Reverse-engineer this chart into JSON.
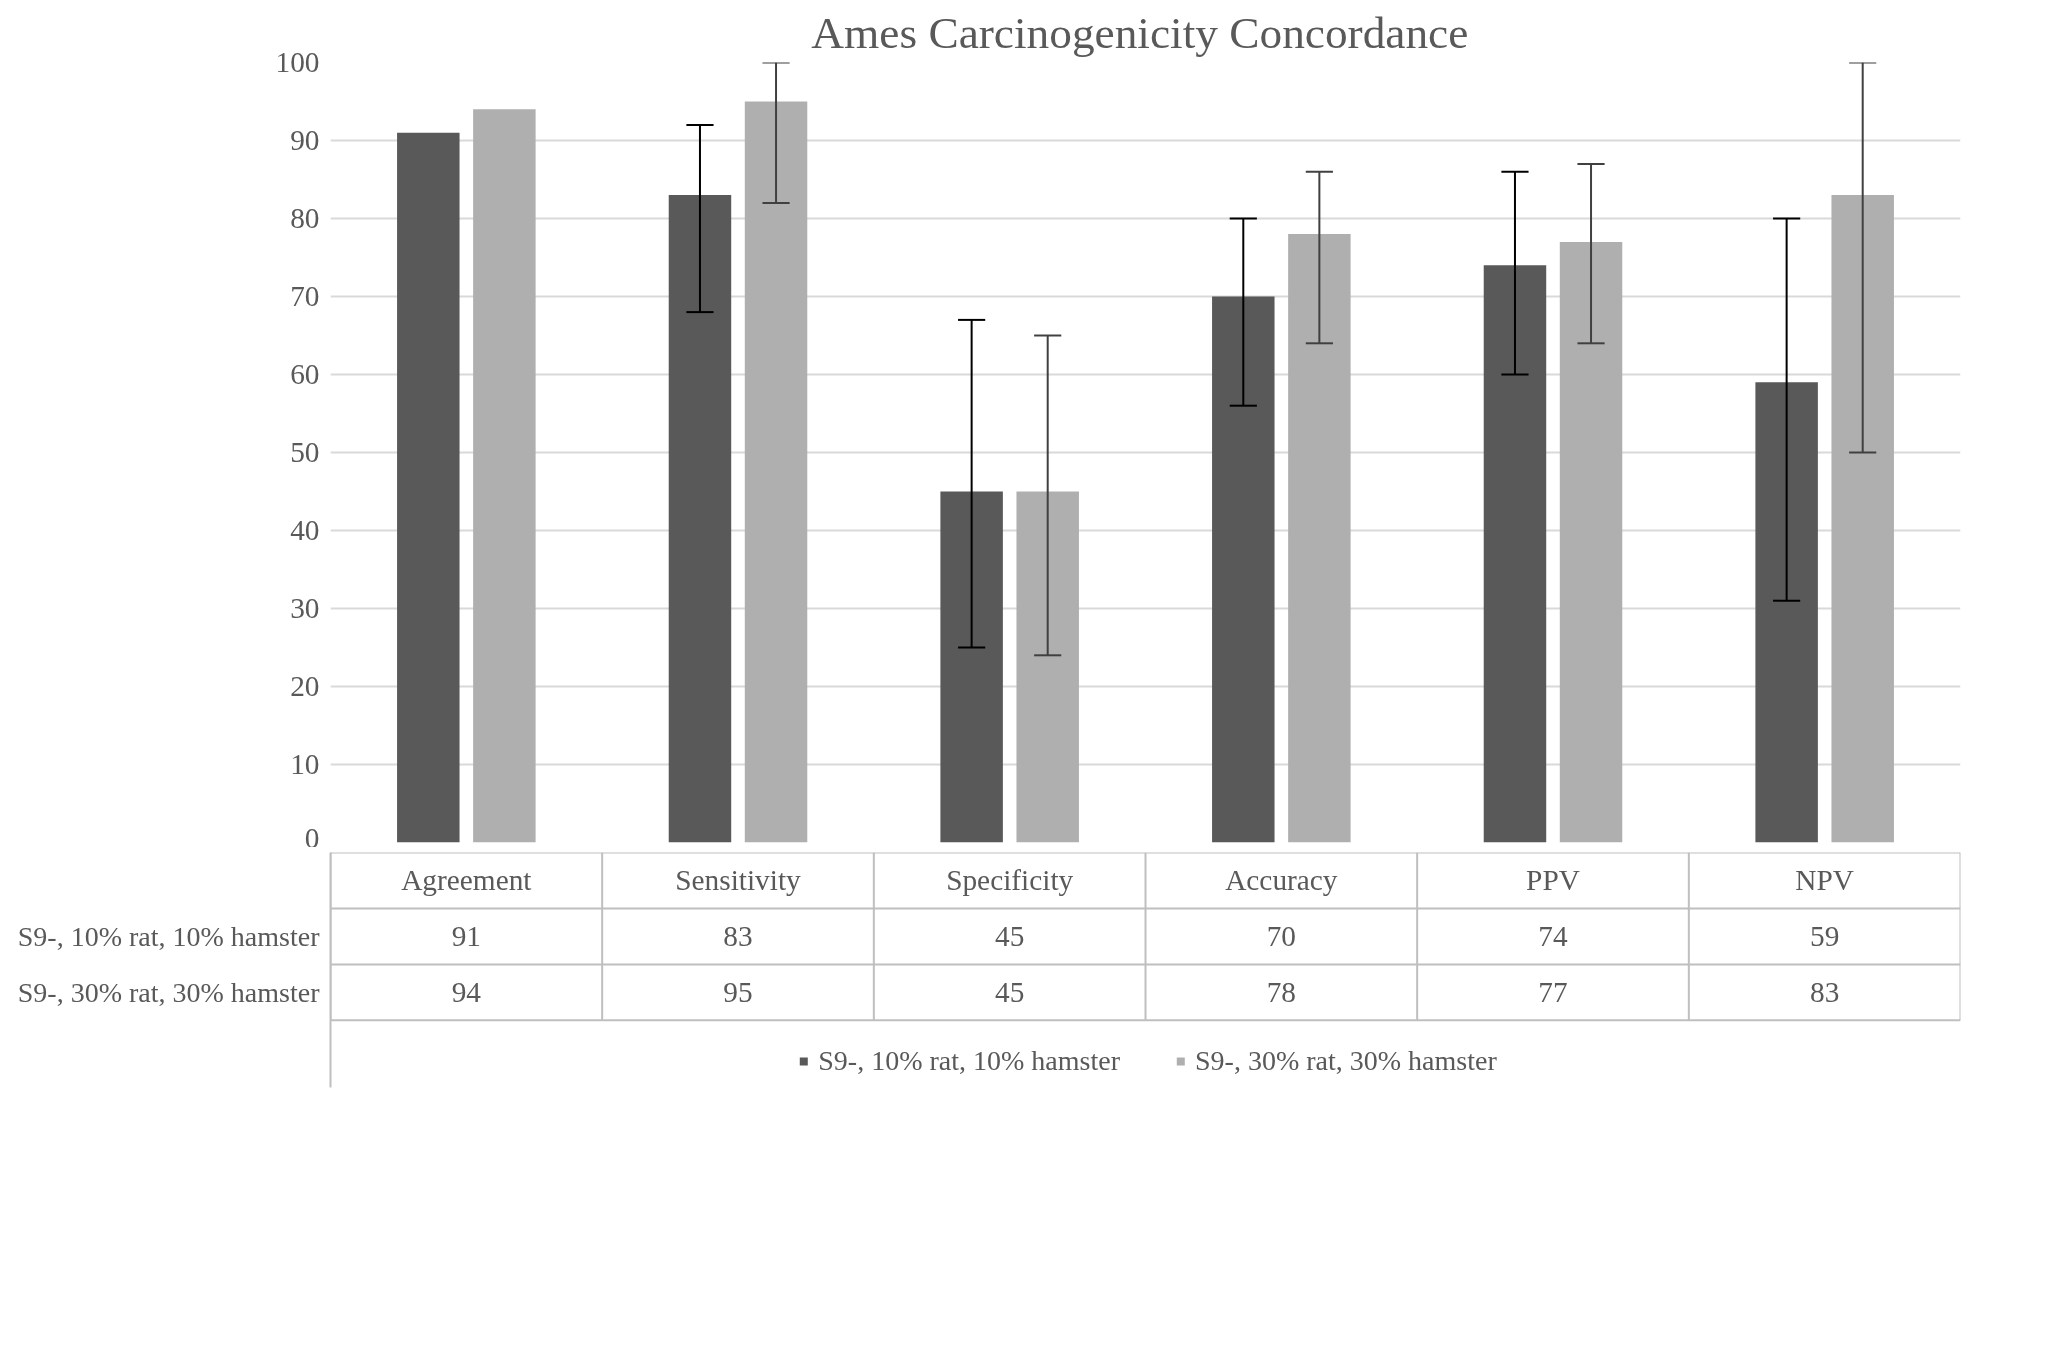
{
  "chart_data": {
    "type": "bar",
    "title": "Ames Carcinogenicity  Concordance",
    "categories": [
      "Agreement",
      "Sensitivity",
      "Specificity",
      "Accuracy",
      "PPV",
      "NPV"
    ],
    "series": [
      {
        "name": "S9-, 10% rat, 10% hamster",
        "color": "#595959",
        "values": [
          91,
          83,
          45,
          70,
          74,
          59
        ],
        "errors": [
          null,
          [
            68,
            92
          ],
          [
            25,
            67
          ],
          [
            56,
            80
          ],
          [
            60,
            86
          ],
          [
            31,
            80
          ]
        ]
      },
      {
        "name": "S9-, 30% rat, 30% hamster",
        "color": "#afafaf",
        "values": [
          94,
          95,
          45,
          78,
          77,
          83
        ],
        "errors": [
          null,
          [
            82,
            100
          ],
          [
            24,
            65
          ],
          [
            64,
            86
          ],
          [
            64,
            87
          ],
          [
            50,
            100
          ]
        ]
      }
    ],
    "ylim": [
      0,
      100
    ],
    "yticks": [
      0,
      10,
      20,
      30,
      40,
      50,
      60,
      70,
      80,
      90,
      100
    ],
    "grid": "y",
    "legend": "bottom",
    "data_labels": true,
    "tick_labels": "y"
  }
}
